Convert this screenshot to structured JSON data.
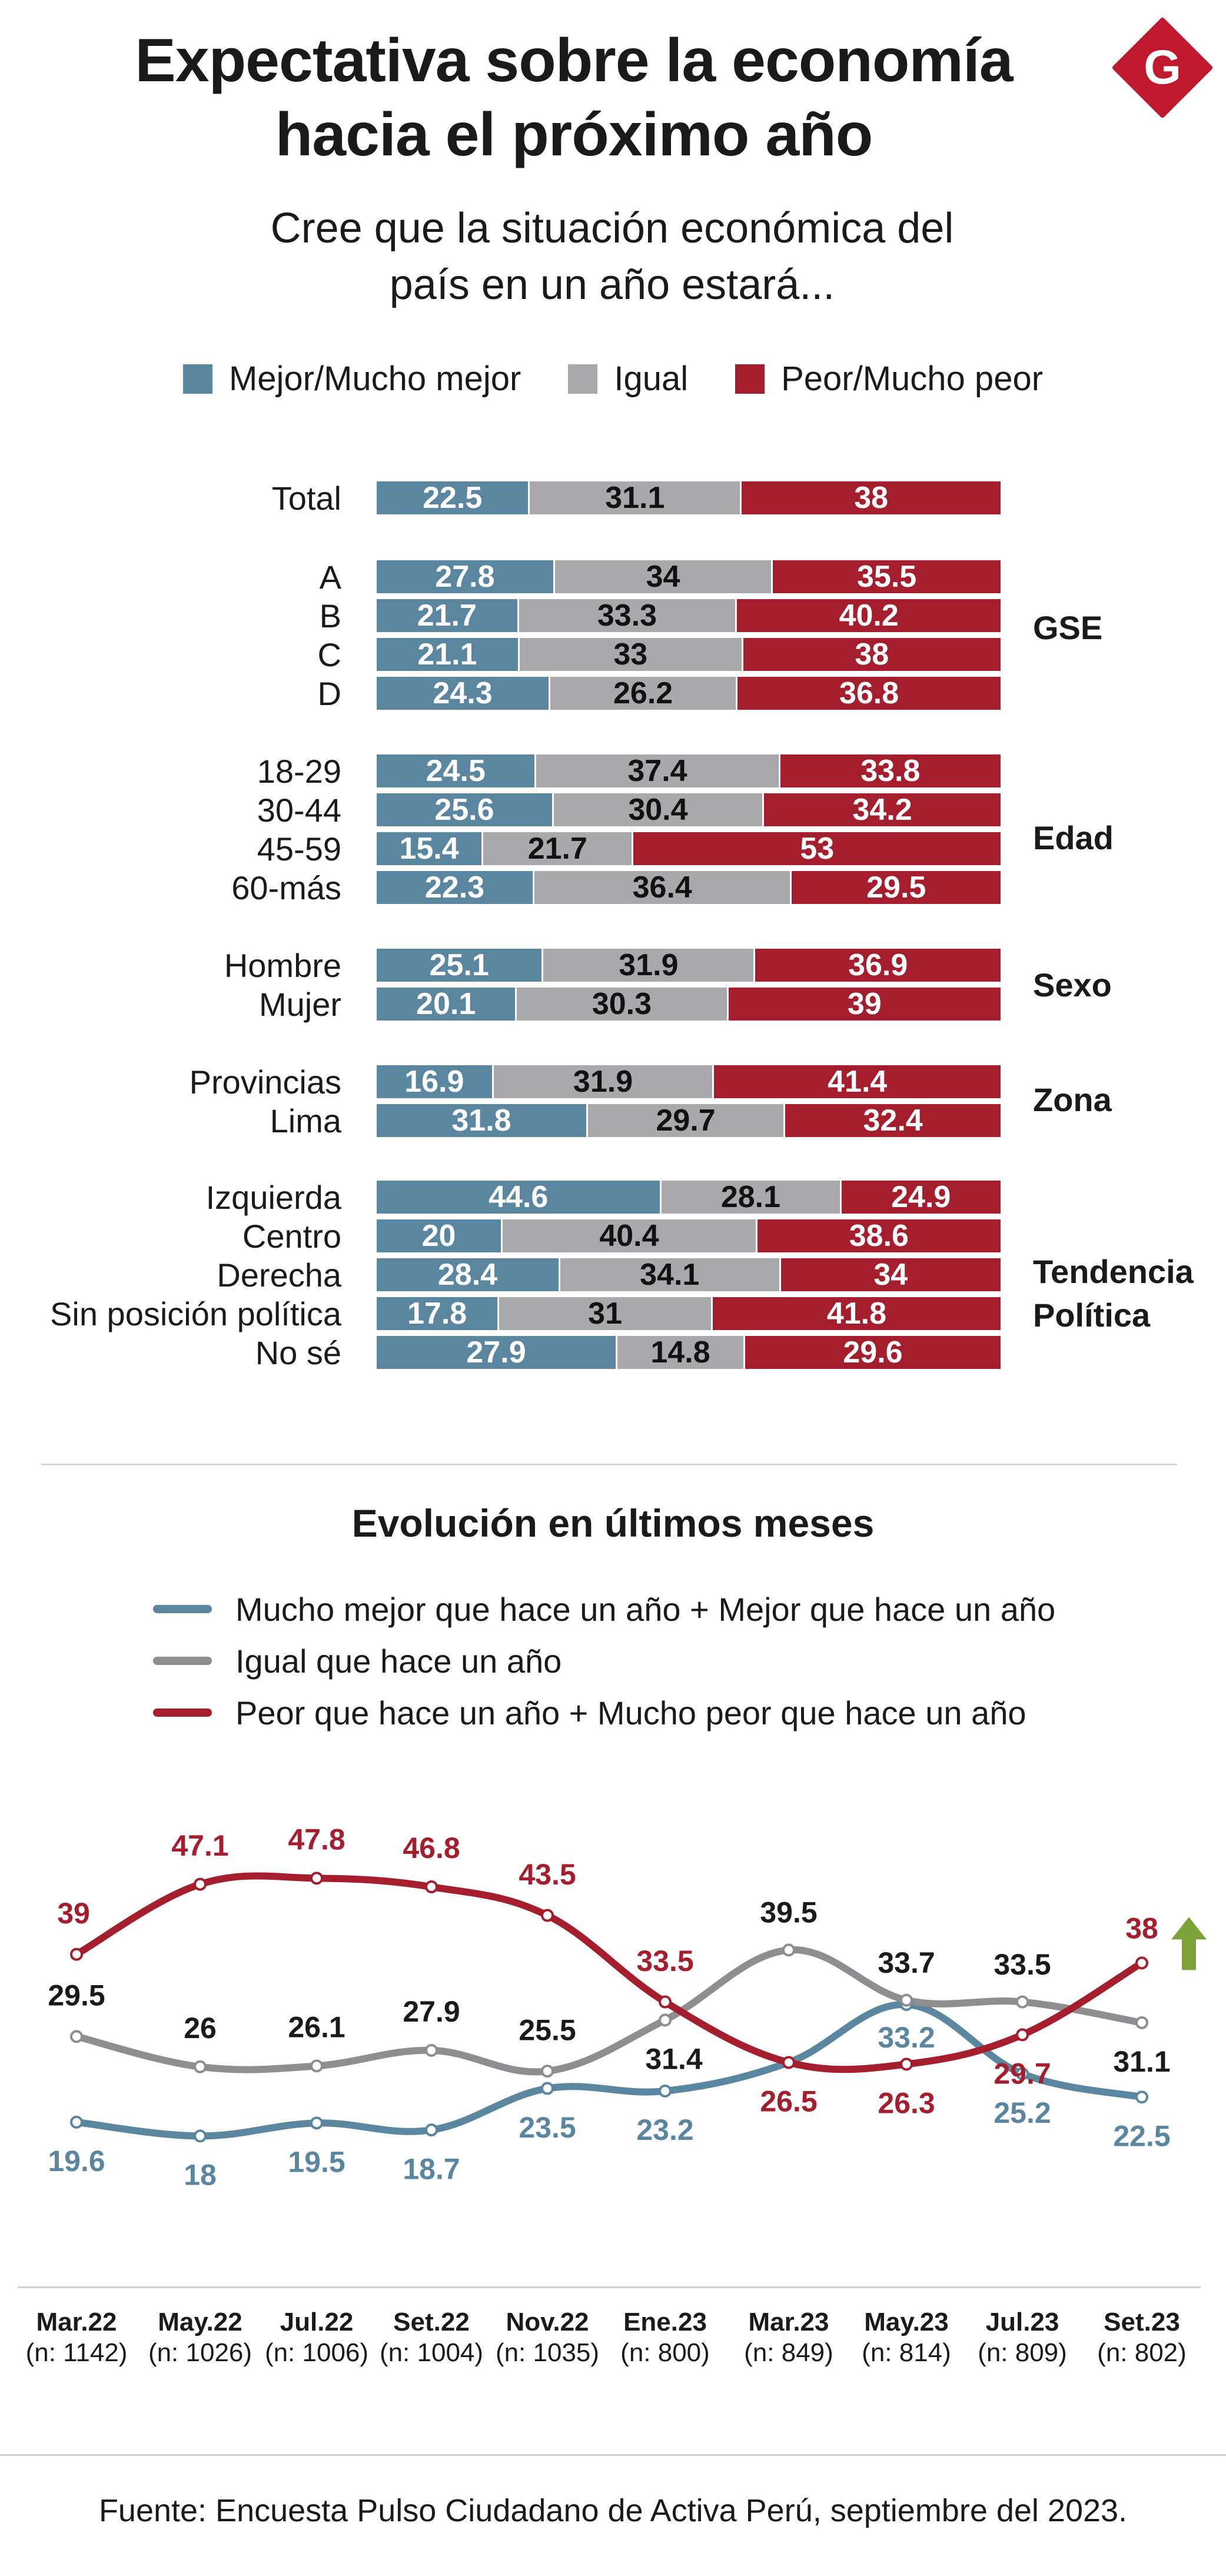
{
  "header": {
    "title_line1": "Expectativa sobre la economía",
    "title_line2": "hacia el próximo año",
    "subtitle_line1": "Cree que la situación económica del",
    "subtitle_line2": "país en un año estará...",
    "logo_letter": "G"
  },
  "legend_bars": [
    {
      "label": "Mejor/Mucho mejor",
      "color": "#5b86a0"
    },
    {
      "label": "Igual",
      "color": "#a9a9ab"
    },
    {
      "label": "Peor/Mucho peor",
      "color": "#a51e2d"
    }
  ],
  "groups": [
    {
      "name": ""
    },
    {
      "name": "GSE"
    },
    {
      "name": "Edad"
    },
    {
      "name": "Sexo"
    },
    {
      "name": "Zona"
    },
    {
      "name": "Tendencia Política",
      "name_line1": "Tendencia",
      "name_line2": "Política"
    }
  ],
  "section2": {
    "title": "Evolución en últimos meses",
    "legend": [
      {
        "label": "Mucho mejor que hace un año + Mejor que hace un año",
        "color": "#5b86a0"
      },
      {
        "label": "Igual que hace un año",
        "color": "#8e8e90"
      },
      {
        "label": "Peor que hace un año + Mucho peor que hace un año",
        "color": "#a51e2d"
      }
    ]
  },
  "source": "Fuente: Encuesta Pulso Ciudadano de Activa Perú, septiembre del 2023.",
  "chart_data": [
    {
      "type": "bar",
      "stacked": true,
      "orientation": "horizontal",
      "series_names": [
        "Mejor/Mucho mejor",
        "Igual",
        "Peor/Mucho peor"
      ],
      "rows": [
        {
          "label": "Total",
          "group": "",
          "values": [
            22.5,
            31.1,
            38
          ]
        },
        {
          "label": "A",
          "group": "GSE",
          "values": [
            27.8,
            34,
            35.5
          ]
        },
        {
          "label": "B",
          "group": "GSE",
          "values": [
            21.7,
            33.3,
            40.2
          ]
        },
        {
          "label": "C",
          "group": "GSE",
          "values": [
            21.1,
            33,
            38
          ]
        },
        {
          "label": "D",
          "group": "GSE",
          "values": [
            24.3,
            26.2,
            36.8
          ]
        },
        {
          "label": "18-29",
          "group": "Edad",
          "values": [
            24.5,
            37.4,
            33.8
          ]
        },
        {
          "label": "30-44",
          "group": "Edad",
          "values": [
            25.6,
            30.4,
            34.2
          ]
        },
        {
          "label": "45-59",
          "group": "Edad",
          "values": [
            15.4,
            21.7,
            53
          ]
        },
        {
          "label": "60-más",
          "group": "Edad",
          "values": [
            22.3,
            36.4,
            29.5
          ]
        },
        {
          "label": "Hombre",
          "group": "Sexo",
          "values": [
            25.1,
            31.9,
            36.9
          ]
        },
        {
          "label": "Mujer",
          "group": "Sexo",
          "values": [
            20.1,
            30.3,
            39
          ]
        },
        {
          "label": "Provincias",
          "group": "Zona",
          "values": [
            16.9,
            31.9,
            41.4
          ]
        },
        {
          "label": "Lima",
          "group": "Zona",
          "values": [
            31.8,
            29.7,
            32.4
          ]
        },
        {
          "label": "Izquierda",
          "group": "Tendencia Política",
          "values": [
            44.6,
            28.1,
            24.9
          ]
        },
        {
          "label": "Centro",
          "group": "Tendencia Política",
          "values": [
            20,
            40.4,
            38.6
          ]
        },
        {
          "label": "Derecha",
          "group": "Tendencia Política",
          "values": [
            28.4,
            34.1,
            34
          ]
        },
        {
          "label": "Sin posición política",
          "group": "Tendencia Política",
          "values": [
            17.8,
            31,
            41.8
          ]
        },
        {
          "label": "No sé",
          "group": "Tendencia Política",
          "values": [
            27.9,
            14.8,
            29.6
          ]
        }
      ]
    },
    {
      "type": "line",
      "title": "Evolución en últimos meses",
      "categories": [
        "Mar.22",
        "May.22",
        "Jul.22",
        "Set.22",
        "Nov.22",
        "Ene.23",
        "Mar.23",
        "May.23",
        "Jul.23",
        "Set.23"
      ],
      "sample_sizes": [
        "(n: 1142)",
        "(n: 1026)",
        "(n: 1006)",
        "(n: 1004)",
        "(n: 1035)",
        "(n: 800)",
        "(n: 849)",
        "(n: 814)",
        "(n: 809)",
        "(n: 802)"
      ],
      "series": [
        {
          "name": "Mucho mejor que hace un año + Mejor que hace un año",
          "color": "#5b86a0",
          "values": [
            19.6,
            18,
            19.5,
            18.7,
            23.5,
            23.2,
            26.5,
            33.2,
            25.2,
            22.5
          ]
        },
        {
          "name": "Igual que hace un año",
          "color": "#8e8e90",
          "values": [
            29.5,
            26,
            26.1,
            27.9,
            25.5,
            31.4,
            39.5,
            33.7,
            33.5,
            31.1
          ]
        },
        {
          "name": "Peor que hace un año + Mucho peor que hace un año",
          "color": "#a51e2d",
          "values": [
            39,
            47.1,
            47.8,
            46.8,
            43.5,
            33.5,
            26.5,
            26.3,
            29.7,
            38
          ]
        }
      ],
      "trend_arrow": "up",
      "trend_arrow_color": "#7ba33a"
    }
  ]
}
